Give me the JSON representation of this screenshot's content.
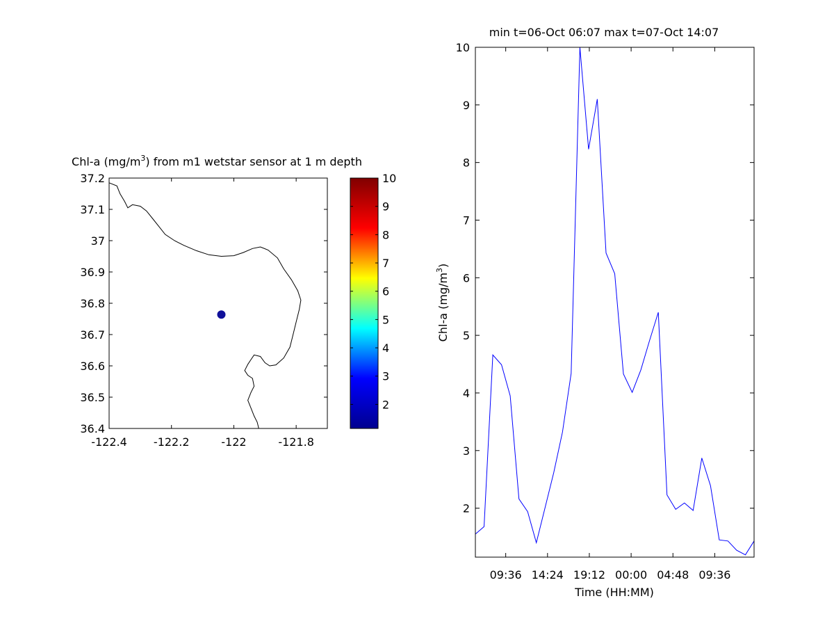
{
  "chart_data": [
    {
      "type": "scatter",
      "title_parts": {
        "before": "Chl-a (mg/m",
        "sup": "3",
        "after": ") from m1 wetstar sensor at 1 m depth"
      },
      "xlabel": "",
      "ylabel": "",
      "xlim": [
        -122.4,
        -121.7
      ],
      "ylim": [
        36.4,
        37.2
      ],
      "x_ticks": [
        -122.4,
        -122.2,
        -122,
        -121.8
      ],
      "x_tick_labels": [
        "-122.4",
        "-122.2",
        "-122",
        "-121.8"
      ],
      "y_ticks": [
        36.4,
        36.5,
        36.6,
        36.7,
        36.8,
        36.9,
        37,
        37.1,
        37.2
      ],
      "y_tick_labels": [
        "36.4",
        "36.5",
        "36.6",
        "36.7",
        "36.8",
        "36.9",
        "37",
        "37.1",
        "37.2"
      ],
      "grid": false,
      "points": [
        {
          "lon": -122.04,
          "lat": 36.764,
          "color": "#10109a"
        }
      ],
      "coastline": [
        [
          -122.4,
          37.185
        ],
        [
          -122.375,
          37.175
        ],
        [
          -122.365,
          37.15
        ],
        [
          -122.35,
          37.125
        ],
        [
          -122.34,
          37.105
        ],
        [
          -122.325,
          37.115
        ],
        [
          -122.3,
          37.11
        ],
        [
          -122.28,
          37.095
        ],
        [
          -122.26,
          37.07
        ],
        [
          -122.24,
          37.045
        ],
        [
          -122.22,
          37.02
        ],
        [
          -122.19,
          37.0
        ],
        [
          -122.16,
          36.985
        ],
        [
          -122.12,
          36.968
        ],
        [
          -122.08,
          36.955
        ],
        [
          -122.04,
          36.95
        ],
        [
          -122.0,
          36.952
        ],
        [
          -121.97,
          36.962
        ],
        [
          -121.94,
          36.975
        ],
        [
          -121.915,
          36.98
        ],
        [
          -121.89,
          36.97
        ],
        [
          -121.86,
          36.945
        ],
        [
          -121.84,
          36.91
        ],
        [
          -121.815,
          36.875
        ],
        [
          -121.795,
          36.84
        ],
        [
          -121.785,
          36.81
        ],
        [
          -121.79,
          36.78
        ],
        [
          -121.8,
          36.74
        ],
        [
          -121.81,
          36.7
        ],
        [
          -121.82,
          36.66
        ],
        [
          -121.84,
          36.625
        ],
        [
          -121.865,
          36.603
        ],
        [
          -121.885,
          36.6
        ],
        [
          -121.9,
          36.61
        ],
        [
          -121.915,
          36.63
        ],
        [
          -121.935,
          36.635
        ],
        [
          -121.945,
          36.62
        ],
        [
          -121.955,
          36.605
        ],
        [
          -121.965,
          36.585
        ],
        [
          -121.955,
          36.57
        ],
        [
          -121.94,
          36.56
        ],
        [
          -121.935,
          36.535
        ],
        [
          -121.945,
          36.515
        ],
        [
          -121.955,
          36.49
        ],
        [
          -121.945,
          36.465
        ],
        [
          -121.935,
          36.44
        ],
        [
          -121.925,
          36.42
        ],
        [
          -121.92,
          36.4
        ]
      ],
      "line_color": "#000000",
      "colorbar": {
        "clim": [
          1.15,
          10
        ],
        "ticks": [
          2,
          3,
          4,
          5,
          6,
          7,
          8,
          9,
          10
        ],
        "tick_labels": [
          "2",
          "3",
          "4",
          "5",
          "6",
          "7",
          "8",
          "9",
          "10"
        ],
        "colormap": "jet",
        "colormap_stops": [
          "#00008f",
          "#0000ff",
          "#00ffff",
          "#ffff00",
          "#ff0000",
          "#800000"
        ]
      }
    },
    {
      "type": "line",
      "title": "min t=06-Oct 06:07 max t=07-Oct 14:07",
      "xlabel": "Time (HH:MM)",
      "ylabel_parts": {
        "before": "Chl-a (mg/m",
        "sup": "3",
        "after": ")"
      },
      "xlim": [
        "06-Oct 06:07",
        "07-Oct 14:07"
      ],
      "x_tick_times": [
        "06-Oct 09:36",
        "06-Oct 14:24",
        "06-Oct 19:12",
        "07-Oct 00:00",
        "07-Oct 04:48",
        "07-Oct 09:36"
      ],
      "x_tick_labels": [
        "09:36",
        "14:24",
        "19:12",
        "00:00",
        "04:48",
        "09:36"
      ],
      "ylim": [
        1.15,
        10
      ],
      "y_ticks": [
        2,
        3,
        4,
        5,
        6,
        7,
        8,
        9,
        10
      ],
      "y_tick_labels": [
        "2",
        "3",
        "4",
        "5",
        "6",
        "7",
        "8",
        "9",
        "10"
      ],
      "grid": false,
      "series": [
        {
          "color": "#0000ff",
          "x": [
            "06-Oct 06:07",
            "06-Oct 07:07",
            "06-Oct 08:07",
            "06-Oct 09:07",
            "06-Oct 10:07",
            "06-Oct 11:07",
            "06-Oct 12:07",
            "06-Oct 13:07",
            "06-Oct 14:07",
            "06-Oct 15:07",
            "06-Oct 16:07",
            "06-Oct 17:07",
            "06-Oct 18:07",
            "06-Oct 19:07",
            "06-Oct 20:07",
            "06-Oct 21:07",
            "06-Oct 22:07",
            "06-Oct 23:07",
            "07-Oct 00:07",
            "07-Oct 01:07",
            "07-Oct 02:07",
            "07-Oct 03:07",
            "07-Oct 04:07",
            "07-Oct 05:07",
            "07-Oct 06:07",
            "07-Oct 07:07",
            "07-Oct 08:07",
            "07-Oct 09:07",
            "07-Oct 10:07",
            "07-Oct 11:07",
            "07-Oct 12:07",
            "07-Oct 13:07",
            "07-Oct 14:07"
          ],
          "y": [
            1.55,
            1.68,
            4.66,
            4.49,
            3.95,
            2.16,
            1.94,
            1.4,
            2.01,
            2.62,
            3.32,
            4.34,
            10.0,
            8.23,
            9.1,
            6.43,
            6.07,
            4.33,
            4.01,
            4.4,
            4.91,
            5.4,
            2.23,
            1.98,
            2.09,
            1.96,
            2.87,
            2.39,
            1.45,
            1.43,
            1.27,
            1.19,
            1.43
          ]
        }
      ]
    }
  ]
}
